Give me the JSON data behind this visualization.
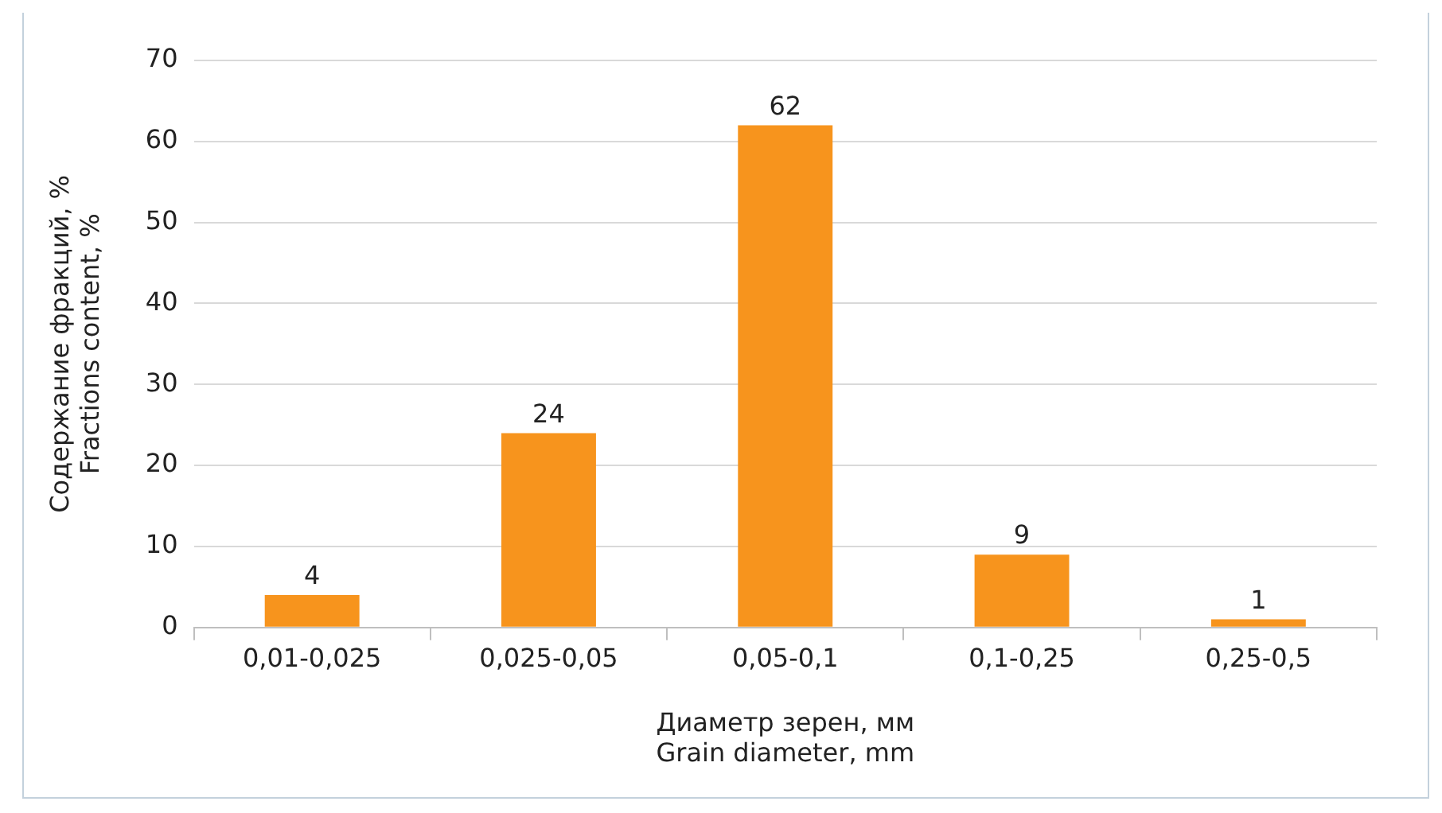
{
  "chart_data": {
    "type": "bar",
    "xlabel": "Диаметр зерен, мм\nGrain diameter, mm",
    "ylabel": "Содержание фракций, %\nFractions content, %",
    "categories": [
      "0,01-0,025",
      "0,025-0,05",
      "0,05-0,1",
      "0,1-0,25",
      "0,25-0,5"
    ],
    "values": [
      4,
      24,
      62,
      9,
      1
    ],
    "color": "#f7941d",
    "ylim": [
      0,
      70
    ],
    "yticks": [
      0,
      10,
      20,
      30,
      40,
      50,
      60,
      70
    ],
    "grid": "y",
    "data_labels": true,
    "legend": false
  }
}
